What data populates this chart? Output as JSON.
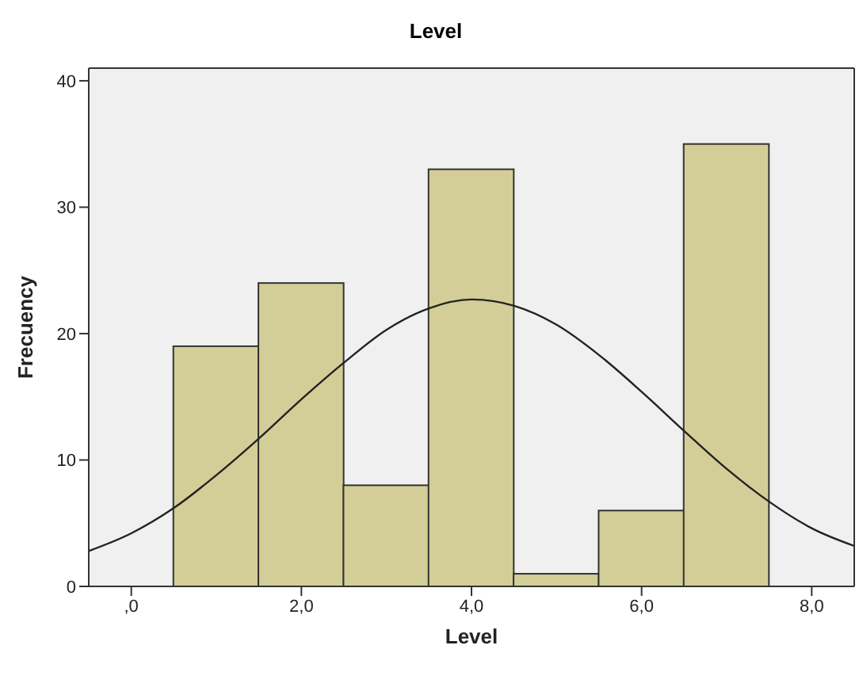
{
  "chart_data": {
    "type": "histogram",
    "title": "Level",
    "xlabel": "Level",
    "ylabel": "Frecuency",
    "bins": [
      0.5,
      1.5,
      2.5,
      3.5,
      4.5,
      5.5,
      6.5,
      7.5
    ],
    "values": [
      19,
      24,
      8,
      33,
      1,
      6,
      35
    ],
    "color": "#d3ce97",
    "series": [
      {
        "type": "line",
        "color": "#222222",
        "x": [
          -0.5,
          0,
          0.5,
          1,
          1.5,
          2,
          2.5,
          3,
          3.5,
          4,
          4.5,
          5,
          5.5,
          6,
          6.5,
          7,
          7.5,
          8,
          8.5
        ],
        "values": [
          2.8,
          4.2,
          6.2,
          8.8,
          11.7,
          14.8,
          17.7,
          20.3,
          22.0,
          22.7,
          22.2,
          20.7,
          18.3,
          15.4,
          12.3,
          9.3,
          6.7,
          4.6,
          3.2
        ]
      }
    ],
    "xlim": [
      -0.5,
      8.5
    ],
    "xticks": [
      {
        "value": 0,
        "label": ",0"
      },
      {
        "value": 2,
        "label": "2,0"
      },
      {
        "value": 4,
        "label": "4,0"
      },
      {
        "value": 6,
        "label": "6,0"
      },
      {
        "value": 8,
        "label": "8,0"
      }
    ],
    "ylim": [
      0,
      41
    ],
    "yticks": [
      0,
      10,
      20,
      30,
      40
    ],
    "grid": false,
    "marker": "none"
  }
}
